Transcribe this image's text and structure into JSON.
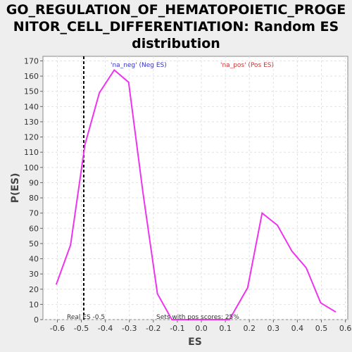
{
  "title_lines": [
    "GO_REGULATION_OF_HEMATOPOIETIC_PROGE",
    "NITOR_CELL_DIFFERENTIATION: Random ES",
    "distribution"
  ],
  "colors": {
    "series": "#ee33ee",
    "neg_label": "#3333cc",
    "pos_label": "#cc3333",
    "real_es_line": "#000000",
    "background": "#eeeeee",
    "plot_background": "#ffffff"
  },
  "chart_data": {
    "type": "line",
    "title": "GO_REGULATION_OF_HEMATOPOIETIC_PROGENITOR_CELL_DIFFERENTIATION: Random ES distribution",
    "xlabel": "ES",
    "ylabel": "P(ES)",
    "xlim": [
      -0.66,
      0.61
    ],
    "ylim": [
      0,
      173
    ],
    "x_ticks": [
      -0.6,
      -0.5,
      -0.4,
      -0.3,
      -0.2,
      -0.1,
      0.0,
      0.1,
      0.2,
      0.3,
      0.4,
      0.5,
      0.6
    ],
    "x_tick_labels": [
      "-0.6",
      "-0.5",
      "-0.4",
      "-0.3",
      "-0.2",
      "-0.1",
      "0.0",
      "0.1",
      "0.2",
      "0.3",
      "0.4",
      "0.5",
      "0.6"
    ],
    "y_ticks": [
      0,
      10,
      20,
      30,
      40,
      50,
      60,
      70,
      80,
      90,
      100,
      110,
      120,
      130,
      140,
      150,
      160,
      170
    ],
    "grid": true,
    "series": [
      {
        "x": [
          -0.605,
          -0.545,
          -0.485,
          -0.425,
          -0.363,
          -0.303,
          -0.243,
          -0.183,
          -0.123,
          -0.063,
          -0.003,
          0.057,
          0.117,
          0.193,
          0.253,
          0.317,
          0.377,
          0.437,
          0.497,
          0.56
        ],
        "y": [
          23,
          49,
          115,
          149,
          164,
          156,
          83,
          17,
          0,
          0,
          0,
          0,
          0,
          21,
          70,
          62,
          45,
          34,
          11,
          5
        ]
      }
    ],
    "annotations": {
      "neg_label": "'na_neg' (Neg ES)",
      "pos_label": "'na_pos' (Pos ES)",
      "real_es_text": "Real ES -0.5",
      "pos_scores_text": "Sets with pos scores: 25%",
      "real_es_value": -0.49
    }
  }
}
